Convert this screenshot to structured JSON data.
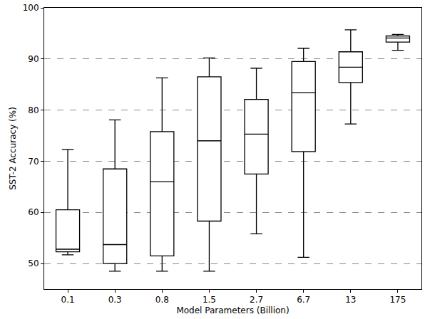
{
  "chart_data": {
    "type": "box",
    "x_label": "Model Parameters (Billion)",
    "y_label": "SST-2 Accuracy (%)",
    "categories": [
      "0.1",
      "0.3",
      "0.8",
      "1.5",
      "2.7",
      "6.7",
      "13",
      "175"
    ],
    "min": [
      51.7,
      48.5,
      48.5,
      48.5,
      55.8,
      51.2,
      77.3,
      91.7
    ],
    "q1": [
      52.3,
      50.0,
      51.5,
      58.3,
      67.5,
      71.9,
      85.4,
      93.3
    ],
    "median": [
      52.8,
      53.7,
      66.0,
      74.0,
      75.3,
      83.4,
      88.4,
      94.1
    ],
    "q3": [
      60.5,
      68.5,
      75.8,
      86.5,
      82.1,
      89.5,
      91.4,
      94.5
    ],
    "max": [
      72.3,
      78.1,
      86.3,
      90.2,
      88.2,
      92.1,
      95.7,
      94.8
    ],
    "color": "#000000",
    "ylim": [
      45,
      100
    ],
    "yticks": [
      50,
      60,
      70,
      80,
      90,
      100
    ],
    "grid": true
  }
}
